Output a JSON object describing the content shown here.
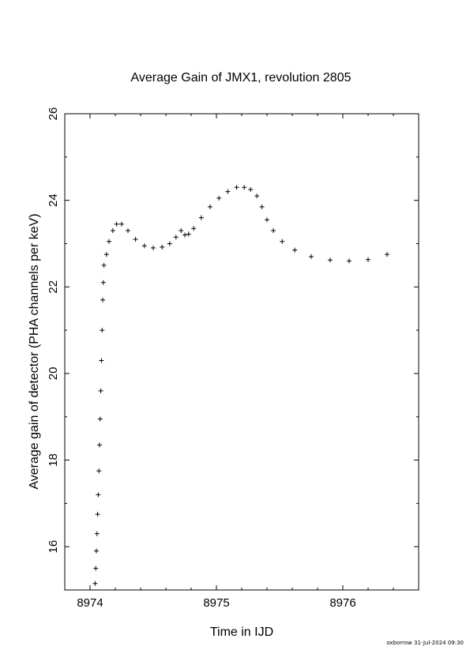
{
  "chart_data": {
    "type": "scatter",
    "title": "Average Gain of JMX1, revolution 2805",
    "xlabel": "Time in IJD",
    "ylabel": "Average gain of detector (PHA channels per keV)",
    "xlim": [
      8973.8,
      8976.6
    ],
    "ylim": [
      15,
      26
    ],
    "xticks": [
      8974,
      8975,
      8976
    ],
    "xtick_labels": [
      "8974",
      "8975",
      "8976"
    ],
    "yticks": [
      16,
      18,
      20,
      22,
      24,
      26
    ],
    "ytick_labels": [
      "16",
      "18",
      "20",
      "22",
      "24",
      "26"
    ],
    "grid": false,
    "legend": "none",
    "marker": "+",
    "color": "#000000",
    "series": [
      {
        "x": [
          8974.04,
          8974.045,
          8974.05,
          8974.055,
          8974.06,
          8974.065,
          8974.07,
          8974.075,
          8974.08,
          8974.085,
          8974.09,
          8974.095,
          8974.1,
          8974.105,
          8974.11,
          8974.13,
          8974.15,
          8974.18,
          8974.21,
          8974.25,
          8974.3,
          8974.36,
          8974.43,
          8974.5,
          8974.57,
          8974.63,
          8974.68,
          8974.72,
          8974.75,
          8974.78,
          8974.82,
          8974.88,
          8974.95,
          8975.02,
          8975.09,
          8975.16,
          8975.22,
          8975.27,
          8975.32,
          8975.36,
          8975.4,
          8975.45,
          8975.52,
          8975.62,
          8975.75,
          8975.9,
          8976.05,
          8976.2,
          8976.35
        ],
        "y": [
          15.15,
          15.5,
          15.9,
          16.3,
          16.75,
          17.2,
          17.75,
          18.35,
          18.95,
          19.6,
          20.3,
          21.0,
          21.7,
          22.1,
          22.5,
          22.75,
          23.05,
          23.3,
          23.45,
          23.45,
          23.3,
          23.1,
          22.95,
          22.9,
          22.92,
          23.0,
          23.15,
          23.3,
          23.2,
          23.22,
          23.35,
          23.6,
          23.85,
          24.05,
          24.2,
          24.3,
          24.3,
          24.25,
          24.1,
          23.85,
          23.55,
          23.3,
          23.05,
          22.85,
          22.7,
          22.62,
          22.6,
          22.63,
          22.75
        ]
      }
    ]
  },
  "footer": "oxborrow 31-Jul-2024 09:30"
}
